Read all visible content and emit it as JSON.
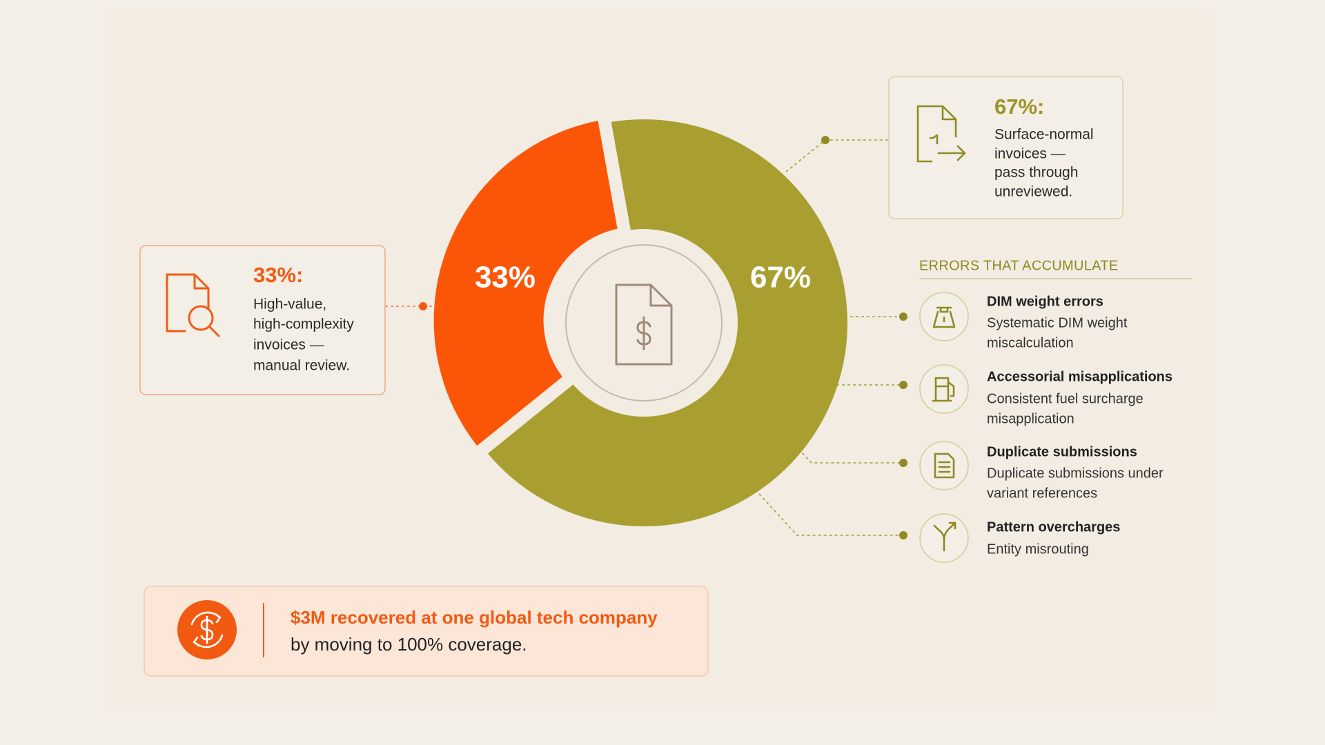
{
  "chart_data": {
    "type": "pie",
    "values": [
      33,
      67
    ],
    "value_labels": [
      "33%",
      "67%"
    ],
    "colors": [
      "#fb5607",
      "#a99f30"
    ],
    "donut": true
  },
  "callouts": [
    {
      "heading": "33%:",
      "body": [
        "High-value,",
        "high-complexity",
        "invoices —",
        "manual review."
      ]
    },
    {
      "heading": "67%:",
      "body": [
        "Surface-normal",
        "invoices —",
        "pass through",
        "unreviewed."
      ]
    }
  ],
  "errors": {
    "heading": "ERRORS THAT ACCUMULATE",
    "items": [
      {
        "title": "DIM weight errors",
        "description": [
          "Systematic DIM weight",
          "miscalculation"
        ]
      },
      {
        "title": "Accessorial misapplications",
        "description": [
          "Consistent fuel surcharge",
          "misapplication"
        ]
      },
      {
        "title": "Duplicate submissions",
        "description": [
          "Duplicate submissions under",
          "variant references"
        ]
      },
      {
        "title": "Pattern overcharges",
        "description": [
          "Entity misrouting"
        ]
      }
    ]
  },
  "banner": {
    "headline": "$3M recovered at one global tech company",
    "subline": "by moving to 100% coverage."
  }
}
